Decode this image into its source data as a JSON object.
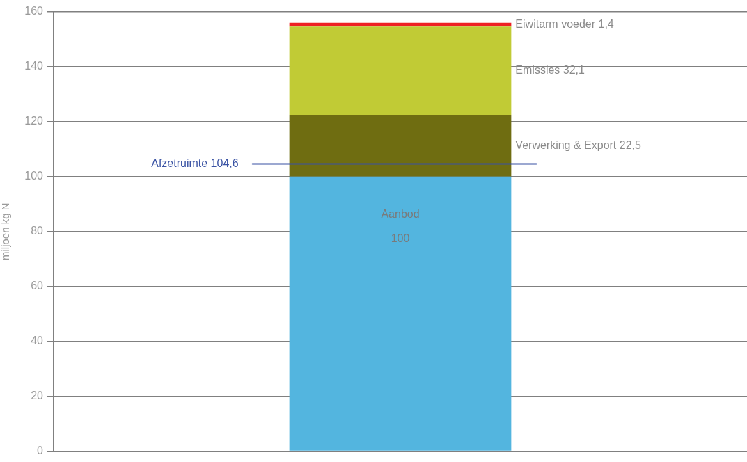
{
  "chart_data": {
    "type": "bar",
    "ylabel": "miljoen kg N",
    "categories": [
      null
    ],
    "stacked": true,
    "series": [
      {
        "name": "Aanbod",
        "color": "#53b5df",
        "values": [
          100
        ],
        "value_labels": [
          "100"
        ]
      },
      {
        "name": "Verwerking & Export",
        "color": "#6f6d11",
        "values": [
          22.5
        ],
        "value_labels": [
          "22,5"
        ]
      },
      {
        "name": "Emissies",
        "color": "#c1cb35",
        "values": [
          32.1
        ],
        "value_labels": [
          "32,1"
        ]
      },
      {
        "name": "Eiwitarm voeder",
        "color": "#ee2024",
        "values": [
          1.4
        ],
        "value_labels": [
          "1,4"
        ]
      }
    ],
    "ylim": [
      0,
      160
    ],
    "yticks": [
      0,
      20,
      40,
      60,
      80,
      100,
      120,
      140,
      160
    ],
    "grid": "y",
    "legend": false,
    "ref_lines": [
      {
        "axis": "y",
        "value": 104.6,
        "label": "Afzetruimte 104,6",
        "color": "#3a53a4"
      }
    ]
  }
}
